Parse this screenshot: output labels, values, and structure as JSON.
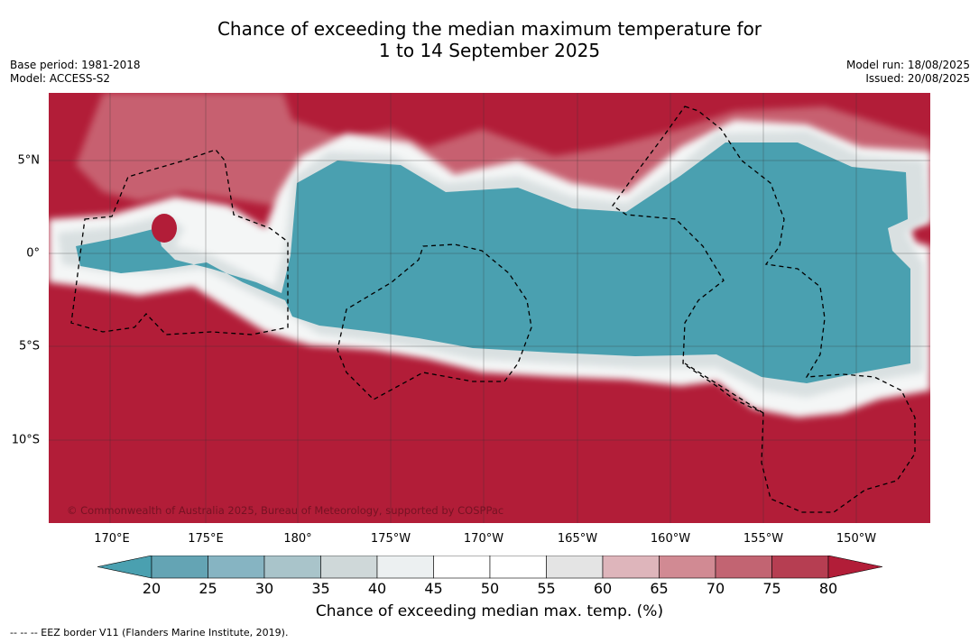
{
  "title_line1": "Chance of exceeding the median maximum temperature for",
  "title_line2": "1 to 14 September 2025",
  "base_period": "Base period: 1981-2018",
  "model": "Model: ACCESS-S2",
  "model_run": "Model run: 18/08/2025",
  "issued": "Issued: 20/08/2025",
  "copyright": "© Commonwealth of Australia 2025, Bureau of Meteorology, supported by COSPPac",
  "lon_labels": [
    "170°E",
    "175°E",
    "180°",
    "175°W",
    "170°W",
    "165°W",
    "160°W",
    "155°W",
    "150°W"
  ],
  "lat_labels": [
    "5°N",
    "0°",
    "5°S",
    "10°S"
  ],
  "colorbar": {
    "ticks": [
      "20",
      "25",
      "30",
      "35",
      "40",
      "45",
      "50",
      "55",
      "60",
      "65",
      "70",
      "75",
      "80"
    ],
    "colors": [
      "#64a4b4",
      "#86b4c2",
      "#a9c4ca",
      "#cfd8d9",
      "#ecf0f1",
      "#ffffff",
      "#ffffff",
      "#e4e4e4",
      "#deb5bb",
      "#d18a93",
      "#c26472",
      "#b63e52"
    ],
    "under_color": "#4aa0b0",
    "over_color": "#b21d38",
    "label": "Chance of exceeding median max. temp. (%)"
  },
  "footnote": "-- -- -- EEZ border V11 (Flanders Marine Institute, 2019)."
}
